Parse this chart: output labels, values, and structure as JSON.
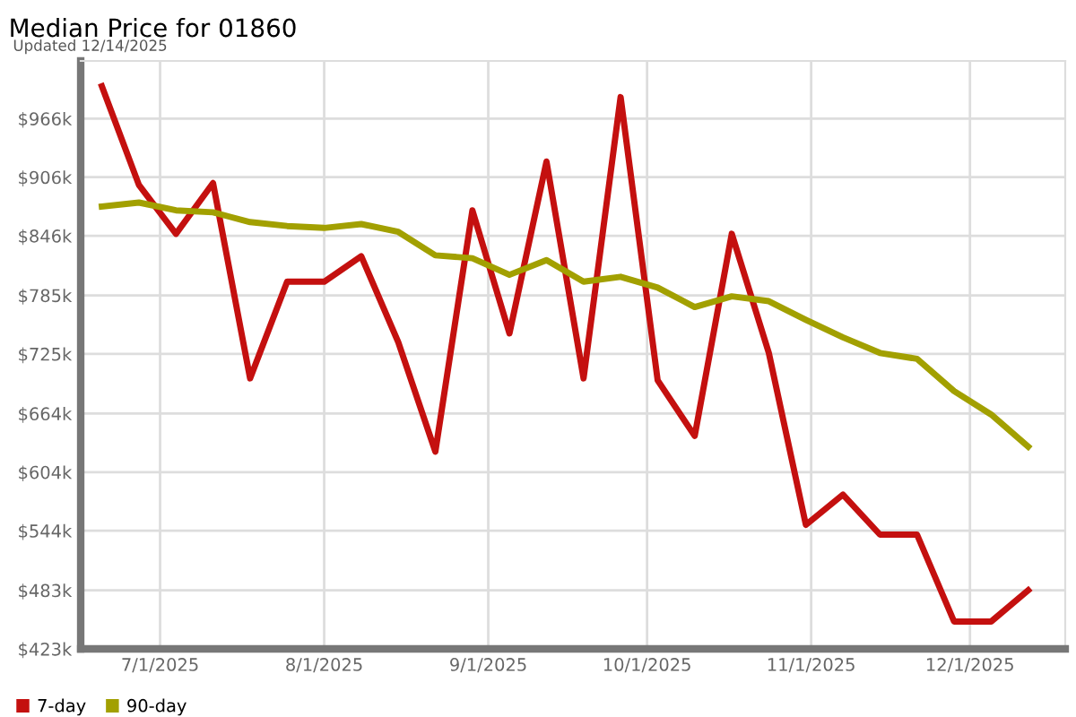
{
  "chart_data": {
    "type": "line",
    "title": "Median Price for 01860",
    "subtitle": "Updated 12/14/2025",
    "x": [
      "2025-06-20",
      "2025-06-27",
      "2025-07-04",
      "2025-07-11",
      "2025-07-18",
      "2025-07-25",
      "2025-08-01",
      "2025-08-08",
      "2025-08-15",
      "2025-08-22",
      "2025-08-29",
      "2025-09-05",
      "2025-09-12",
      "2025-09-19",
      "2025-09-26",
      "2025-10-03",
      "2025-10-10",
      "2025-10-17",
      "2025-10-24",
      "2025-10-31",
      "2025-11-07",
      "2025-11-14",
      "2025-11-21",
      "2025-11-28",
      "2025-12-05",
      "2025-12-12"
    ],
    "series": [
      {
        "name": "7-day",
        "color": "#c4100f",
        "values": [
          999,
          898,
          848,
          900,
          700,
          799,
          799,
          825,
          737,
          625,
          872,
          746,
          922,
          700,
          988,
          698,
          641,
          848,
          726,
          550,
          581,
          540,
          540,
          451,
          451,
          483
        ]
      },
      {
        "name": "90-day",
        "color": "#a2a000",
        "values": [
          876,
          880,
          872,
          870,
          860,
          856,
          854,
          858,
          850,
          826,
          823,
          806,
          821,
          799,
          804,
          793,
          773,
          784,
          779,
          760,
          742,
          726,
          720,
          687,
          663,
          630
        ]
      }
    ],
    "xlim": [
      "2025-06-16",
      "2025-12-19"
    ],
    "xticks": [
      {
        "value": "2025-07-01",
        "label": "7/1/2025"
      },
      {
        "value": "2025-08-01",
        "label": "8/1/2025"
      },
      {
        "value": "2025-09-01",
        "label": "9/1/2025"
      },
      {
        "value": "2025-10-01",
        "label": "10/1/2025"
      },
      {
        "value": "2025-11-01",
        "label": "11/1/2025"
      },
      {
        "value": "2025-12-01",
        "label": "12/1/2025"
      }
    ],
    "ylim": [
      423,
      1025
    ],
    "yticks": [
      {
        "value": 423,
        "label": "$423k"
      },
      {
        "value": 483,
        "label": "$483k"
      },
      {
        "value": 544,
        "label": "$544k"
      },
      {
        "value": 604,
        "label": "$604k"
      },
      {
        "value": 664,
        "label": "$664k"
      },
      {
        "value": 725,
        "label": "$725k"
      },
      {
        "value": 785,
        "label": "$785k"
      },
      {
        "value": 846,
        "label": "$846k"
      },
      {
        "value": 906,
        "label": "$906k"
      },
      {
        "value": 966,
        "label": "$966k"
      }
    ],
    "grid": true,
    "legend": "bottom left",
    "marker": "none",
    "line_style": "solid"
  }
}
